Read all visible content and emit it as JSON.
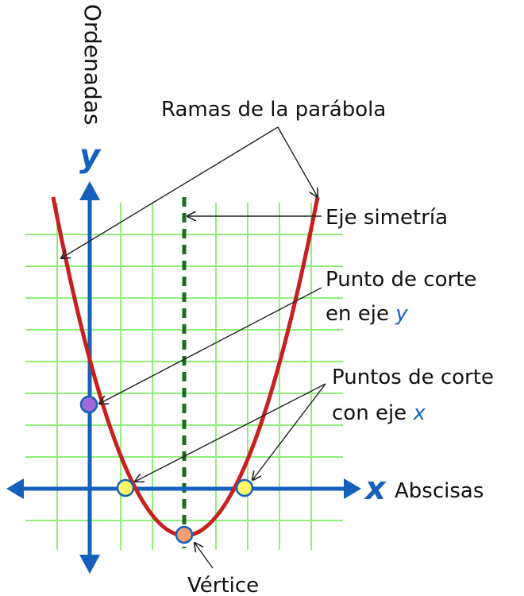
{
  "labels": {
    "ordinate_axis": "Ordenadas",
    "abscissa_axis": "Abscisas",
    "y_letter": "y",
    "x_letter": "x",
    "branches": "Ramas de la parábola",
    "symmetry_axis": "Eje simetría",
    "y_intercept_line1": "Punto de corte",
    "y_intercept_line2_prefix": "en eje",
    "y_intercept_line2_var": "y",
    "x_intercepts_line1": "Puntos de corte",
    "x_intercepts_line2_prefix": "con eje",
    "x_intercepts_line2_var": "x",
    "vertex": "Vértice"
  },
  "colors": {
    "axis": "#1560bd",
    "parabola": "#c8201e",
    "grid": "#8fef7a",
    "symmetry": "#1a6e1a",
    "y_intercept_point": "#a06ad6",
    "x_intercept_point": "#fbf568",
    "vertex_point": "#f2a070",
    "arrow": "#222222"
  }
}
